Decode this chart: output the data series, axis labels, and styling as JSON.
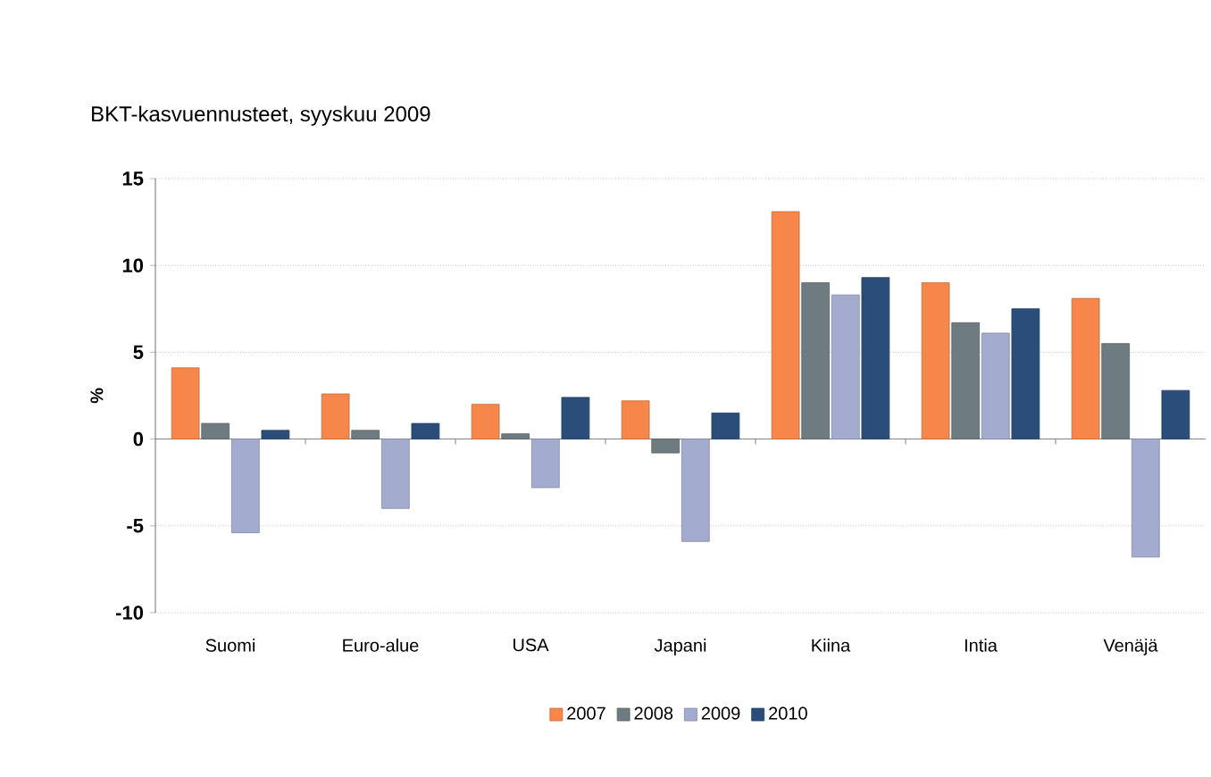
{
  "chart_data": {
    "type": "bar",
    "title": "BKT-kasvuennusteet, syyskuu 2009",
    "ylabel": "%",
    "categories": [
      "Suomi",
      "Euro-alue",
      "USA",
      "Japani",
      "Kiina",
      "Intia",
      "Venäjä"
    ],
    "series": [
      {
        "name": "2007",
        "color": "#f7864a",
        "values": [
          4.1,
          2.6,
          2.0,
          2.2,
          13.1,
          9.0,
          8.1
        ]
      },
      {
        "name": "2008",
        "color": "#6e7b80",
        "values": [
          0.9,
          0.5,
          0.3,
          -0.8,
          9.0,
          6.7,
          5.5
        ]
      },
      {
        "name": "2009",
        "color": "#a3abcf",
        "values": [
          -5.4,
          -4.0,
          -2.8,
          -5.9,
          8.3,
          6.1,
          -6.8
        ]
      },
      {
        "name": "2010",
        "color": "#2b4d7a",
        "values": [
          0.5,
          0.9,
          2.4,
          1.5,
          9.3,
          7.5,
          2.8
        ]
      }
    ],
    "ylim": [
      -10,
      15
    ],
    "yticks": [
      -10,
      -5,
      0,
      5,
      10,
      15
    ],
    "grid": "y",
    "legend": "bottom"
  }
}
